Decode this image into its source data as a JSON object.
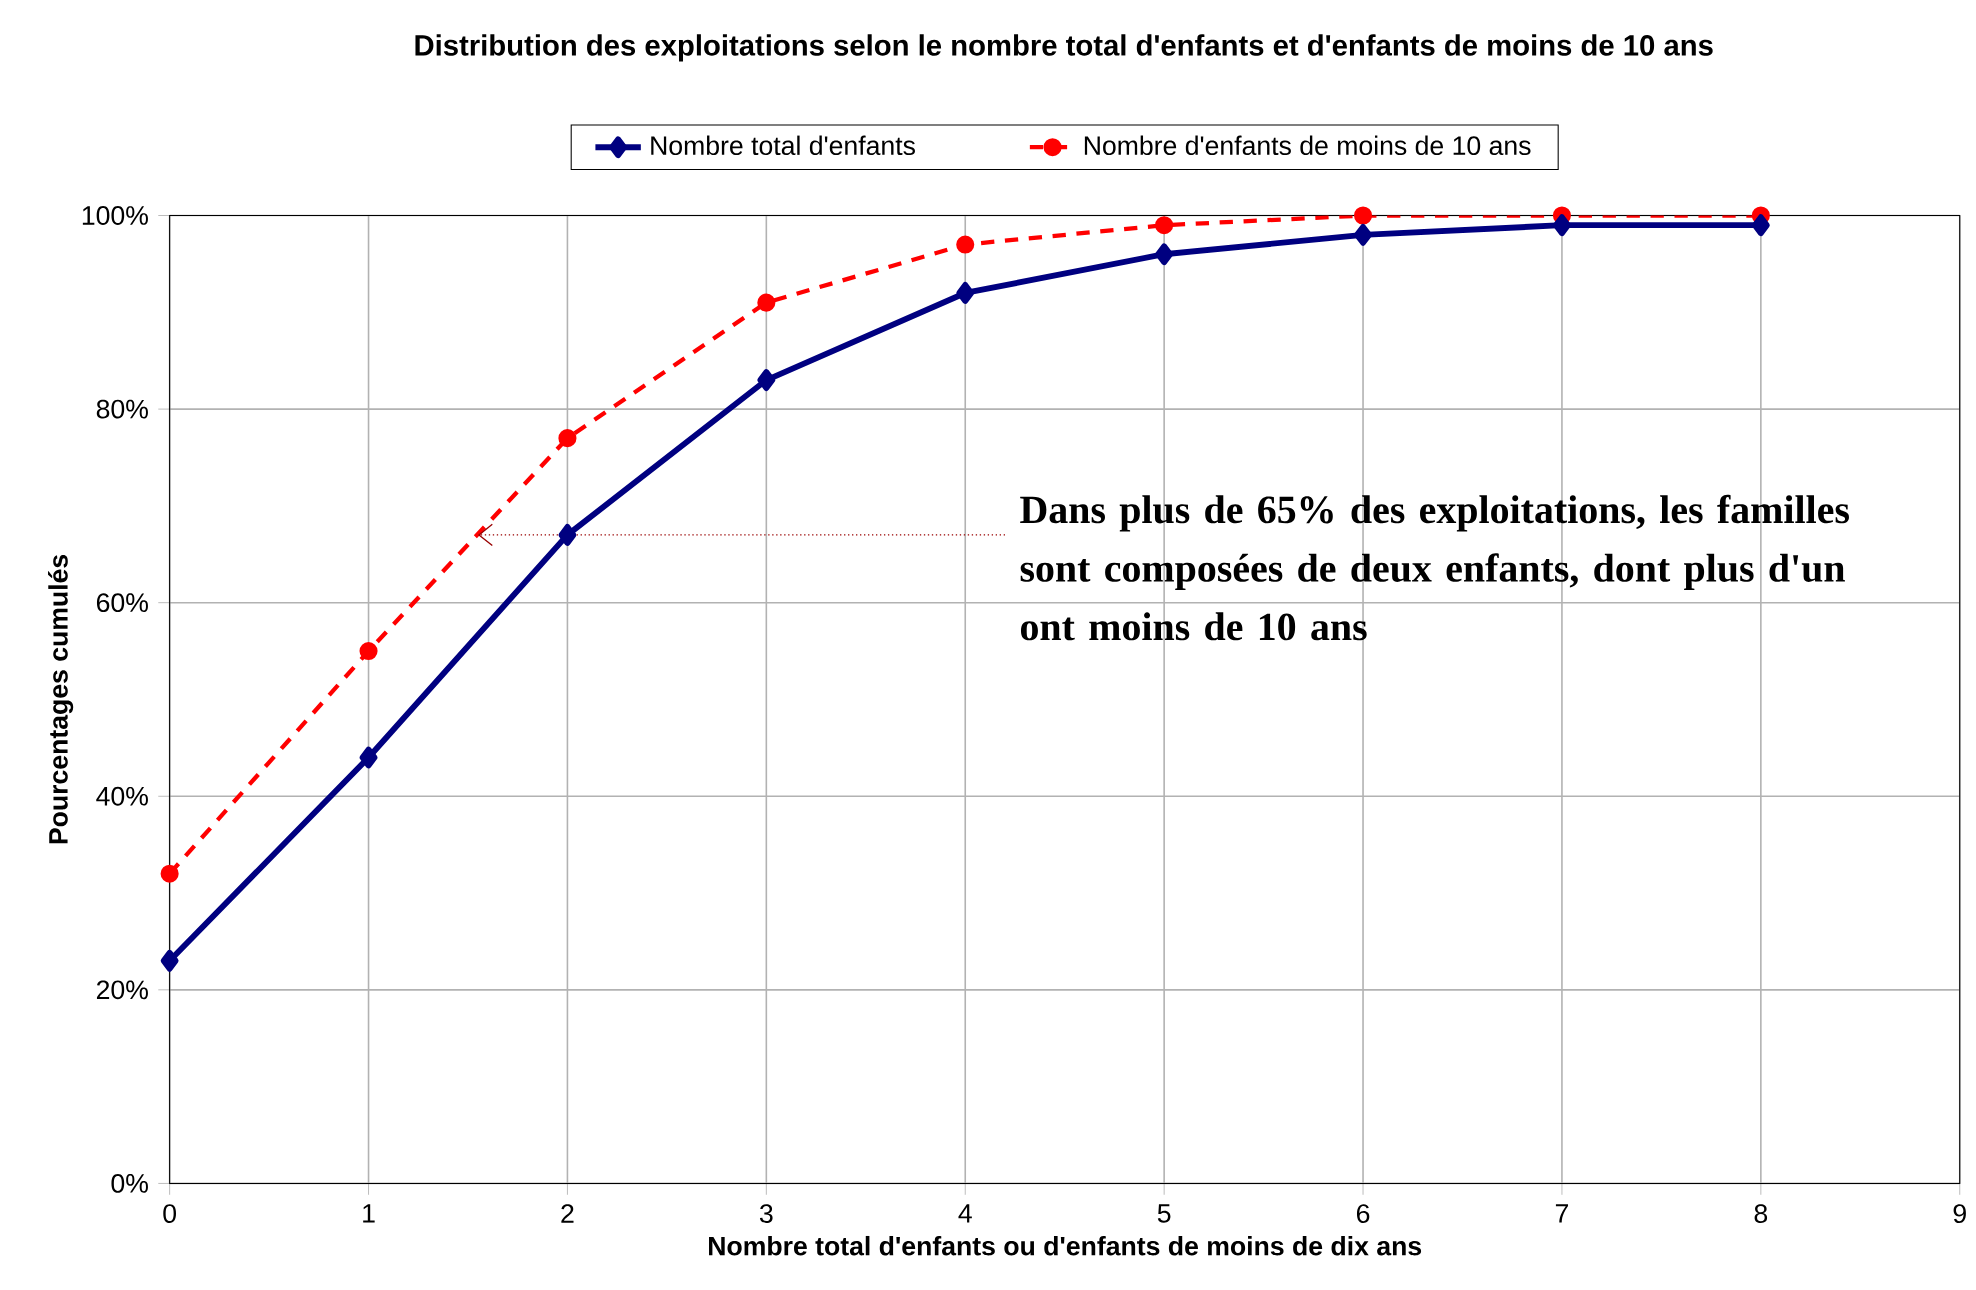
{
  "chart_data": {
    "type": "line",
    "title": "Distribution des exploitations selon le nombre total d'enfants et d'enfants de moins de 10 ans",
    "xlabel": "Nombre total d'enfants ou d'enfants de moins de dix ans",
    "ylabel": "Pourcentages cumulés",
    "x": [
      0,
      1,
      2,
      3,
      4,
      5,
      6,
      7,
      8
    ],
    "series": [
      {
        "name": "Nombre total d'enfants",
        "color": "#000080",
        "marker": "diamond",
        "line_style": "solid",
        "values": [
          23,
          44,
          67,
          83,
          92,
          96,
          98,
          99,
          99
        ]
      },
      {
        "name": "Nombre d'enfants de moins de 10 ans",
        "color": "#ff0000",
        "marker": "circle",
        "line_style": "dashed",
        "values": [
          32,
          55,
          77,
          91,
          97,
          99,
          100,
          100,
          100
        ]
      }
    ],
    "xlim": [
      0,
      9
    ],
    "xticks": [
      0,
      1,
      2,
      3,
      4,
      5,
      6,
      7,
      8,
      9
    ],
    "ylim": [
      0,
      100
    ],
    "yticks": [
      {
        "value": 0,
        "label": "0%"
      },
      {
        "value": 20,
        "label": "20%"
      },
      {
        "value": 40,
        "label": "40%"
      },
      {
        "value": 60,
        "label": "60%"
      },
      {
        "value": 80,
        "label": "80%"
      },
      {
        "value": 100,
        "label": "100%"
      }
    ],
    "grid": true,
    "legend": "top",
    "annotations": [
      {
        "text": "Dans plus de 65% des exploitations, les familles sont composées de deux enfants, dont plus d'un ont moins de 10 ans",
        "x": 1.55,
        "y": 67
      }
    ]
  }
}
